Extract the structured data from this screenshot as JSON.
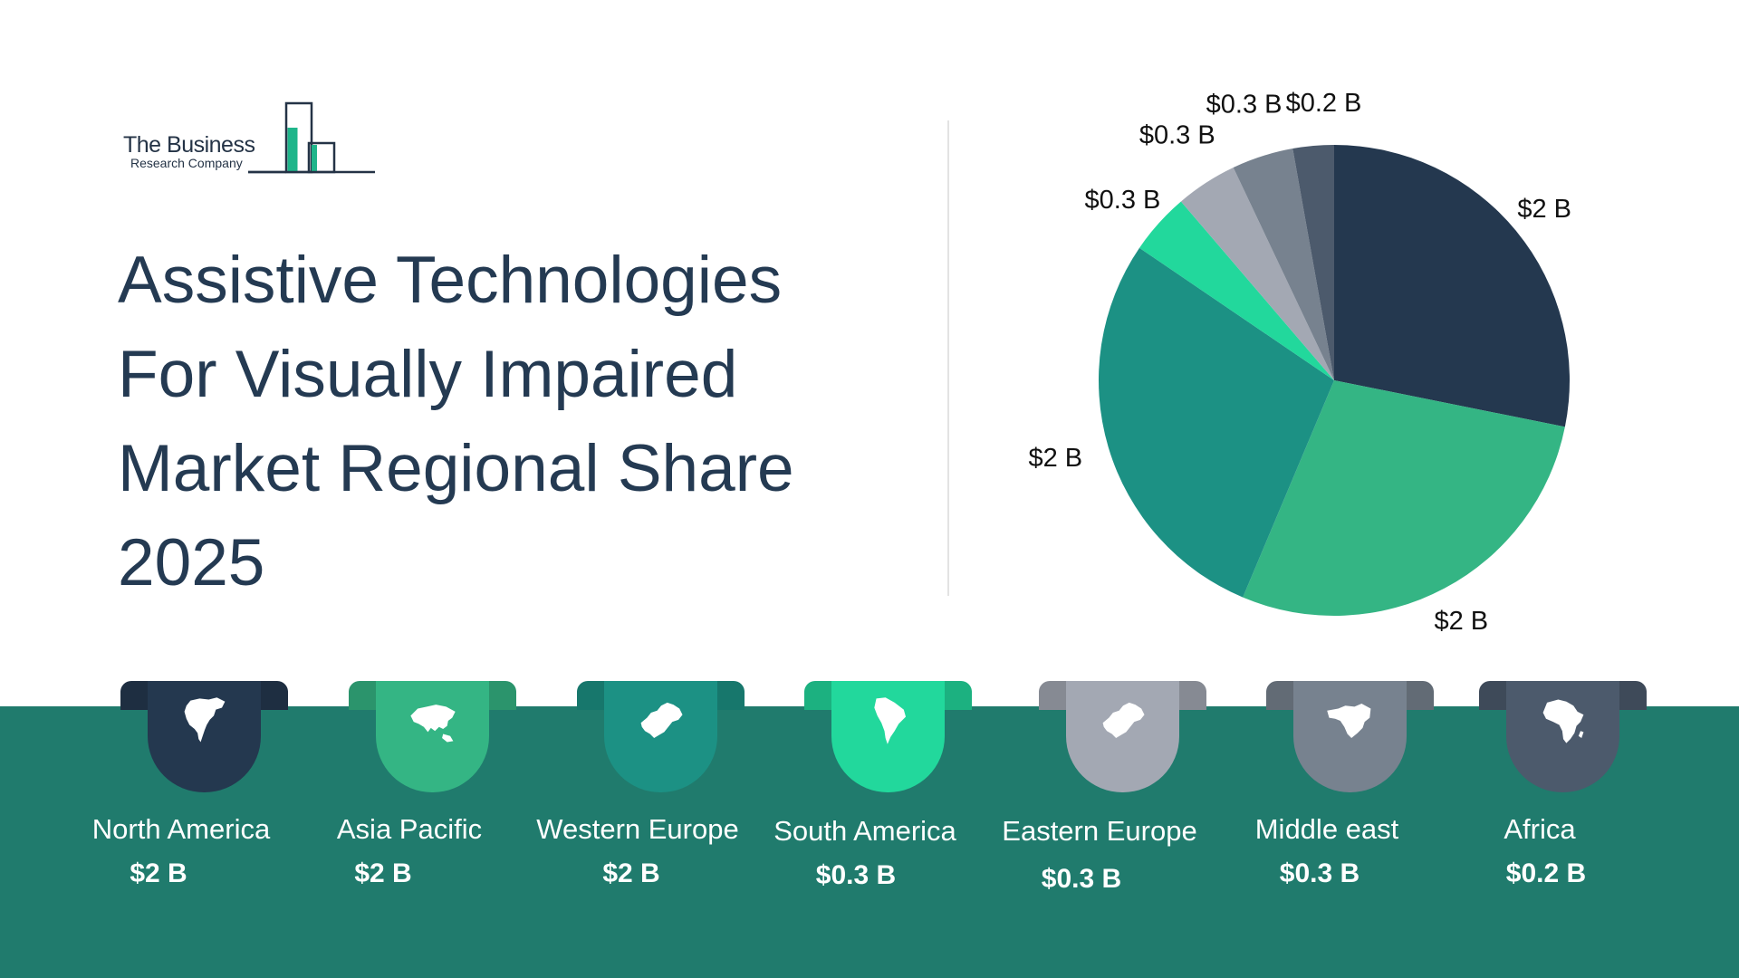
{
  "logo": {
    "line1": "The Business",
    "line2": "Research Company"
  },
  "title_lines": [
    "Assistive Technologies",
    "For Visually Impaired",
    "Market Regional Share",
    "2025"
  ],
  "chart_data": {
    "type": "pie",
    "title": "Assistive Technologies For Visually Impaired Market Regional Share 2025",
    "unit": "$ B",
    "start_angle": "12 o'clock",
    "direction": "clockwise",
    "slices": [
      {
        "name": "North America",
        "value": 2,
        "label": "$2 B",
        "color": "#24384f"
      },
      {
        "name": "Asia Pacific",
        "value": 2,
        "label": "$2 B",
        "color": "#34b584"
      },
      {
        "name": "Western Europe",
        "value": 2,
        "label": "$2 B",
        "color": "#1c9184"
      },
      {
        "name": "South America",
        "value": 0.3,
        "label": "$0.3 B",
        "color": "#22d89c"
      },
      {
        "name": "Eastern Europe",
        "value": 0.3,
        "label": "$0.3 B",
        "color": "#a3a8b3"
      },
      {
        "name": "Middle east",
        "value": 0.3,
        "label": "$0.3 B",
        "color": "#77828f"
      },
      {
        "name": "Africa",
        "value": 0.2,
        "label": "$0.2 B",
        "color": "#4c5a6c"
      }
    ]
  },
  "regions": [
    {
      "name": "North America",
      "value": "$2 B",
      "color": "#24384f",
      "icon": "north-america-map-icon"
    },
    {
      "name": "Asia Pacific",
      "value": "$2 B",
      "color": "#34b584",
      "icon": "asia-map-icon"
    },
    {
      "name": "Western Europe",
      "value": "$2 B",
      "color": "#1c9184",
      "icon": "europe-map-icon"
    },
    {
      "name": "South America",
      "value": "$0.3 B",
      "color": "#22d89c",
      "icon": "south-america-map-icon"
    },
    {
      "name": "Eastern Europe",
      "value": "$0.3 B",
      "color": "#a3a8b3",
      "icon": "europe-map-icon"
    },
    {
      "name": "Middle east",
      "value": "$0.3 B",
      "color": "#77828f",
      "icon": "middle-east-map-icon"
    },
    {
      "name": "Africa",
      "value": "$0.2 B",
      "color": "#4c5a6c",
      "icon": "africa-map-icon"
    }
  ],
  "colors": {
    "band": "#207b6d",
    "title": "#243a52",
    "logo_accent": "#1fb58a"
  }
}
